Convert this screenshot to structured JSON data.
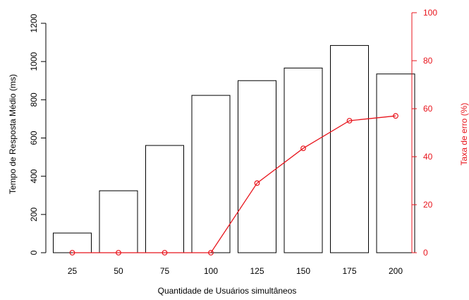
{
  "chart_data": {
    "type": "bar",
    "categories": [
      "25",
      "50",
      "75",
      "100",
      "125",
      "150",
      "175",
      "200"
    ],
    "values": [
      103,
      324,
      561,
      823,
      900,
      966,
      1084,
      935
    ],
    "xlabel": "Quantidade de Usuários simultâneos",
    "ylabel": "Tempo de Resposta Médio (ms)",
    "ylim": [
      0,
      1200
    ],
    "yticks": [
      0,
      200,
      400,
      600,
      800,
      1000,
      1200
    ],
    "grid": false,
    "secondary_axis": {
      "type": "line",
      "values": [
        0,
        0,
        0,
        0,
        29,
        43.5,
        55,
        57
      ],
      "ylabel": "Taxa de erro (%)",
      "ylim": [
        0,
        100
      ],
      "yticks": [
        0,
        20,
        40,
        60,
        80,
        100
      ],
      "color": "#e8141c"
    },
    "bar_fill": "#ffffff",
    "bar_stroke": "#000000"
  }
}
